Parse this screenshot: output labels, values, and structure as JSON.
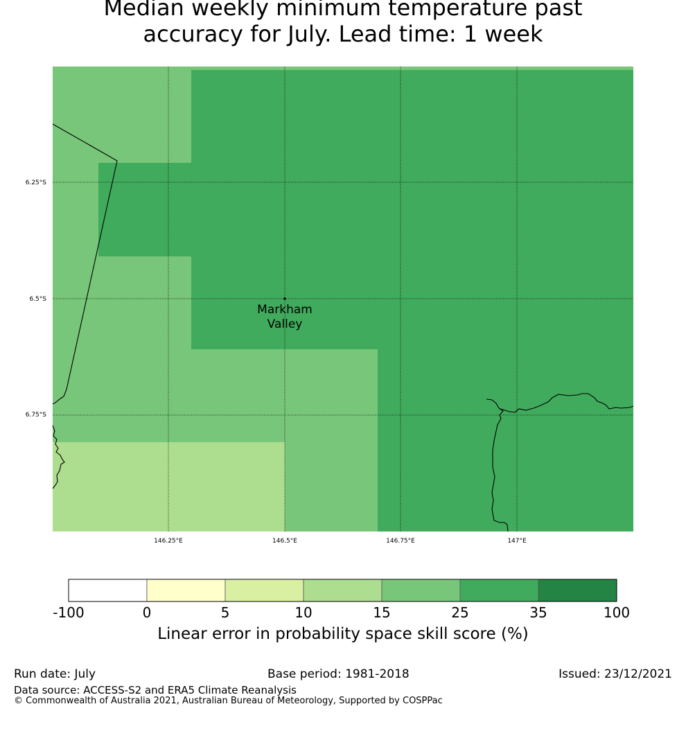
{
  "title": {
    "line1": "Median weekly minimum temperature past",
    "line2": "accuracy for July. Lead time: 1 week"
  },
  "map": {
    "lat_ticks": [
      "6.25°S",
      "6.5°S",
      "6.75°S"
    ],
    "lon_ticks": [
      "146.25°E",
      "146.5°E",
      "146.75°E",
      "147°E"
    ],
    "location_label_line1": "Markham",
    "location_label_line2": "Valley",
    "colors": {
      "class_15_25": "#78c679",
      "class_25_35": "#41ab5d",
      "class_10_15": "#addd8e"
    }
  },
  "colorbar": {
    "title": "Linear error in probability space skill score (%)",
    "tick_labels": [
      "-100",
      "0",
      "5",
      "10",
      "15",
      "25",
      "35",
      "100"
    ],
    "colors": [
      "#ffffff",
      "#ffffcc",
      "#d9f0a3",
      "#addd8e",
      "#78c679",
      "#41ab5d",
      "#238443"
    ]
  },
  "footer": {
    "run_date": "Run date: July",
    "base_period": "Base period: 1981-2018",
    "issued": "Issued: 23/12/2021",
    "data_source": "Data source: ACCESS-S2 and ERA5 Climate Reanalysis",
    "copyright": "© Commonwealth of Australia 2021, Australian Bureau of Meteorology, Supported by COSPPac"
  }
}
